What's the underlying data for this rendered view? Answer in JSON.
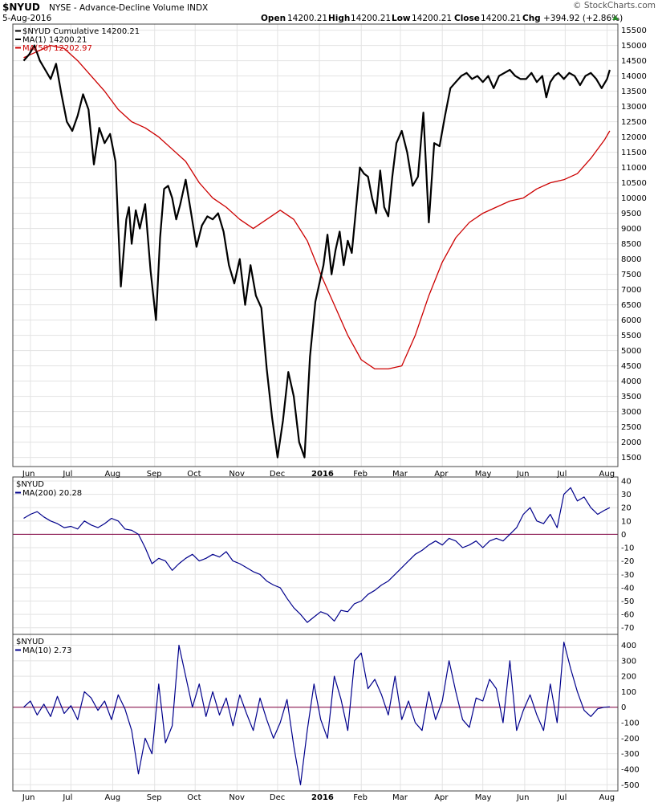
{
  "header": {
    "symbol": "$NYUD",
    "name": "NYSE - Advance-Decline Volume INDX",
    "date": "5-Aug-2016",
    "ohlc": [
      {
        "label": "Open",
        "value": "14200.21"
      },
      {
        "label": "High",
        "value": "14200.21"
      },
      {
        "label": "Low",
        "value": "14200.21"
      },
      {
        "label": "Close",
        "value": "14200.21"
      },
      {
        "label": "Chg",
        "value": "+394.92 (+2.86%)"
      }
    ],
    "watermark": "© StockCharts.com",
    "change_direction": "up"
  },
  "colors": {
    "price": "#000000",
    "ma50": "#cc0000",
    "indicator": "#00008b",
    "zero_line": "#800040",
    "grid": "#e3e3e3"
  },
  "x_axis": {
    "labels": [
      "Jun",
      "Jul",
      "Aug",
      "Sep",
      "Oct",
      "Nov",
      "Dec",
      "2016",
      "Feb",
      "Mar",
      "Apr",
      "May",
      "Jun",
      "Jul",
      "Aug"
    ],
    "bold_label": "2016",
    "positions_days": [
      5,
      35,
      66,
      97,
      127,
      158,
      188,
      219,
      250,
      279,
      310,
      340,
      371,
      401,
      432
    ]
  },
  "chart_data": [
    {
      "type": "line",
      "title": "$NYUD",
      "legend": [
        {
          "label": "$NYUD Cumulative 14200.21",
          "color": "#000000"
        },
        {
          "label": "MA(1) 14200.21",
          "color": "#000000"
        },
        {
          "label": "MA(50) 12202.97",
          "color": "#cc0000"
        }
      ],
      "ylim": [
        1200,
        15700
      ],
      "yticks": [
        1500,
        2000,
        2500,
        3000,
        3500,
        4000,
        4500,
        5000,
        5500,
        6000,
        6500,
        7000,
        7500,
        8000,
        8500,
        9000,
        9500,
        10000,
        10500,
        11000,
        11500,
        12000,
        12500,
        13000,
        13500,
        14000,
        14500,
        15000,
        15500
      ],
      "series": [
        {
          "name": "$NYUD Cumulative",
          "x": [
            0,
            4,
            8,
            12,
            16,
            20,
            24,
            28,
            32,
            36,
            40,
            44,
            48,
            52,
            56,
            60,
            64,
            68,
            72,
            76,
            78,
            80,
            83,
            86,
            90,
            94,
            98,
            101,
            104,
            107,
            110,
            113,
            116,
            120,
            124,
            128,
            132,
            136,
            140,
            144,
            148,
            152,
            156,
            160,
            164,
            168,
            172,
            176,
            180,
            184,
            188,
            192,
            196,
            200,
            204,
            208,
            212,
            216,
            219,
            222,
            225,
            228,
            231,
            234,
            237,
            240,
            243,
            246,
            249,
            252,
            255,
            258,
            261,
            264,
            267,
            270,
            273,
            276,
            280,
            284,
            288,
            292,
            296,
            300,
            304,
            308,
            312,
            316,
            320,
            324,
            328,
            332,
            336,
            340,
            344,
            348,
            352,
            356,
            360,
            364,
            368,
            372,
            376,
            380,
            384,
            387,
            390,
            393,
            396,
            400,
            404,
            408,
            412,
            416,
            420,
            424,
            428,
            432,
            434
          ],
          "y": [
            14500,
            14700,
            15000,
            14500,
            14200,
            13900,
            14400,
            13400,
            12500,
            12200,
            12700,
            13400,
            12900,
            11100,
            12300,
            11800,
            12100,
            11200,
            7100,
            9300,
            9700,
            8500,
            9600,
            9000,
            9800,
            7600,
            6000,
            8700,
            10300,
            10400,
            10000,
            9300,
            9800,
            10600,
            9500,
            8400,
            9100,
            9400,
            9300,
            9500,
            8900,
            7800,
            7200,
            8000,
            6500,
            7800,
            6800,
            6400,
            4400,
            2800,
            1500,
            2700,
            4300,
            3500,
            2000,
            1500,
            4800,
            6600,
            7200,
            7800,
            8800,
            7500,
            8300,
            8900,
            7800,
            8600,
            8200,
            9600,
            11000,
            10800,
            10700,
            10000,
            9500,
            10900,
            9700,
            9400,
            10700,
            11800,
            12200,
            11500,
            10400,
            10700,
            12800,
            9200,
            11800,
            11700,
            12700,
            13600,
            13800,
            14000,
            14100,
            13900,
            14000,
            13800,
            14000,
            13600,
            14000,
            14100,
            14200,
            14000,
            13900,
            13900,
            14100,
            13800,
            14000,
            13300,
            13800,
            14000,
            14100,
            13900,
            14100,
            14000,
            13700,
            14000,
            14100,
            13900,
            13600,
            13900,
            14200
          ]
        },
        {
          "name": "MA(50)",
          "x": [
            0,
            10,
            20,
            30,
            40,
            50,
            60,
            70,
            80,
            90,
            100,
            110,
            120,
            130,
            140,
            150,
            160,
            170,
            180,
            190,
            200,
            210,
            220,
            230,
            240,
            250,
            260,
            270,
            280,
            290,
            300,
            310,
            320,
            330,
            340,
            350,
            360,
            370,
            380,
            390,
            400,
            410,
            420,
            430,
            434
          ],
          "y": [
            14600,
            14800,
            15000,
            14900,
            14500,
            14000,
            13500,
            12900,
            12500,
            12300,
            12000,
            11600,
            11200,
            10500,
            10000,
            9700,
            9300,
            9000,
            9300,
            9600,
            9300,
            8600,
            7500,
            6500,
            5500,
            4700,
            4400,
            4400,
            4500,
            5500,
            6800,
            7900,
            8700,
            9200,
            9500,
            9700,
            9900,
            10000,
            10300,
            10500,
            10600,
            10800,
            11300,
            11900,
            12200
          ]
        }
      ]
    },
    {
      "type": "line",
      "title": "$NYUD",
      "legend": [
        {
          "label": "MA(200) 20.28",
          "color": "#00008b"
        }
      ],
      "ylim": [
        -75,
        43
      ],
      "yticks": [
        -70,
        -60,
        -50,
        -40,
        -30,
        -20,
        -10,
        0,
        10,
        20,
        30,
        40
      ],
      "reference_line": 0,
      "series": [
        {
          "name": "MA(200)",
          "x": [
            0,
            5,
            10,
            15,
            20,
            25,
            30,
            35,
            40,
            45,
            50,
            55,
            60,
            65,
            70,
            75,
            80,
            85,
            90,
            95,
            100,
            105,
            110,
            115,
            120,
            125,
            130,
            135,
            140,
            145,
            150,
            155,
            160,
            165,
            170,
            175,
            180,
            185,
            190,
            195,
            200,
            205,
            210,
            215,
            220,
            225,
            230,
            235,
            240,
            245,
            250,
            255,
            260,
            265,
            270,
            275,
            280,
            285,
            290,
            295,
            300,
            305,
            310,
            315,
            320,
            325,
            330,
            335,
            340,
            345,
            350,
            355,
            360,
            365,
            370,
            375,
            380,
            385,
            390,
            395,
            400,
            405,
            410,
            415,
            420,
            425,
            430,
            434
          ],
          "y": [
            12,
            15,
            17,
            13,
            10,
            8,
            5,
            6,
            4,
            10,
            7,
            5,
            8,
            12,
            10,
            4,
            3,
            0,
            -10,
            -22,
            -18,
            -20,
            -27,
            -22,
            -18,
            -15,
            -20,
            -18,
            -15,
            -17,
            -13,
            -20,
            -22,
            -25,
            -28,
            -30,
            -35,
            -38,
            -40,
            -48,
            -55,
            -60,
            -66,
            -62,
            -58,
            -60,
            -65,
            -57,
            -58,
            -52,
            -50,
            -45,
            -42,
            -38,
            -35,
            -30,
            -25,
            -20,
            -15,
            -12,
            -8,
            -5,
            -8,
            -3,
            -5,
            -10,
            -8,
            -5,
            -10,
            -5,
            -3,
            -5,
            0,
            5,
            15,
            20,
            10,
            8,
            15,
            5,
            30,
            35,
            25,
            28,
            20,
            15,
            18,
            20
          ]
        }
      ]
    },
    {
      "type": "line",
      "title": "$NYUD",
      "legend": [
        {
          "label": "MA(10) 2.73",
          "color": "#00008b"
        }
      ],
      "ylim": [
        -540,
        470
      ],
      "yticks": [
        -500,
        -400,
        -300,
        -200,
        -100,
        0,
        100,
        200,
        300,
        400
      ],
      "reference_line": 0,
      "series": [
        {
          "name": "MA(10)",
          "x": [
            0,
            5,
            10,
            15,
            20,
            25,
            30,
            35,
            40,
            45,
            50,
            55,
            60,
            65,
            70,
            75,
            80,
            85,
            90,
            95,
            100,
            105,
            110,
            115,
            120,
            125,
            130,
            135,
            140,
            145,
            150,
            155,
            160,
            165,
            170,
            175,
            180,
            185,
            190,
            195,
            200,
            205,
            210,
            215,
            220,
            225,
            230,
            235,
            240,
            245,
            250,
            255,
            260,
            265,
            270,
            275,
            280,
            285,
            290,
            295,
            300,
            305,
            310,
            315,
            320,
            325,
            330,
            335,
            340,
            345,
            350,
            355,
            360,
            365,
            370,
            375,
            380,
            385,
            390,
            395,
            400,
            405,
            410,
            415,
            420,
            425,
            430,
            434
          ],
          "y": [
            0,
            40,
            -50,
            20,
            -60,
            70,
            -40,
            10,
            -80,
            100,
            60,
            -20,
            40,
            -80,
            80,
            -10,
            -150,
            -430,
            -200,
            -300,
            150,
            -230,
            -120,
            400,
            200,
            0,
            150,
            -60,
            100,
            -50,
            60,
            -120,
            80,
            -40,
            -150,
            60,
            -80,
            -200,
            -100,
            50,
            -250,
            -500,
            -150,
            150,
            -80,
            -200,
            200,
            50,
            -150,
            300,
            350,
            120,
            180,
            80,
            -50,
            200,
            -80,
            40,
            -100,
            -150,
            100,
            -80,
            40,
            300,
            100,
            -80,
            -130,
            60,
            40,
            180,
            120,
            -100,
            300,
            -150,
            -20,
            80,
            -50,
            -150,
            150,
            -100,
            420,
            250,
            100,
            -20,
            -60,
            -10,
            0,
            3
          ]
        }
      ]
    }
  ]
}
